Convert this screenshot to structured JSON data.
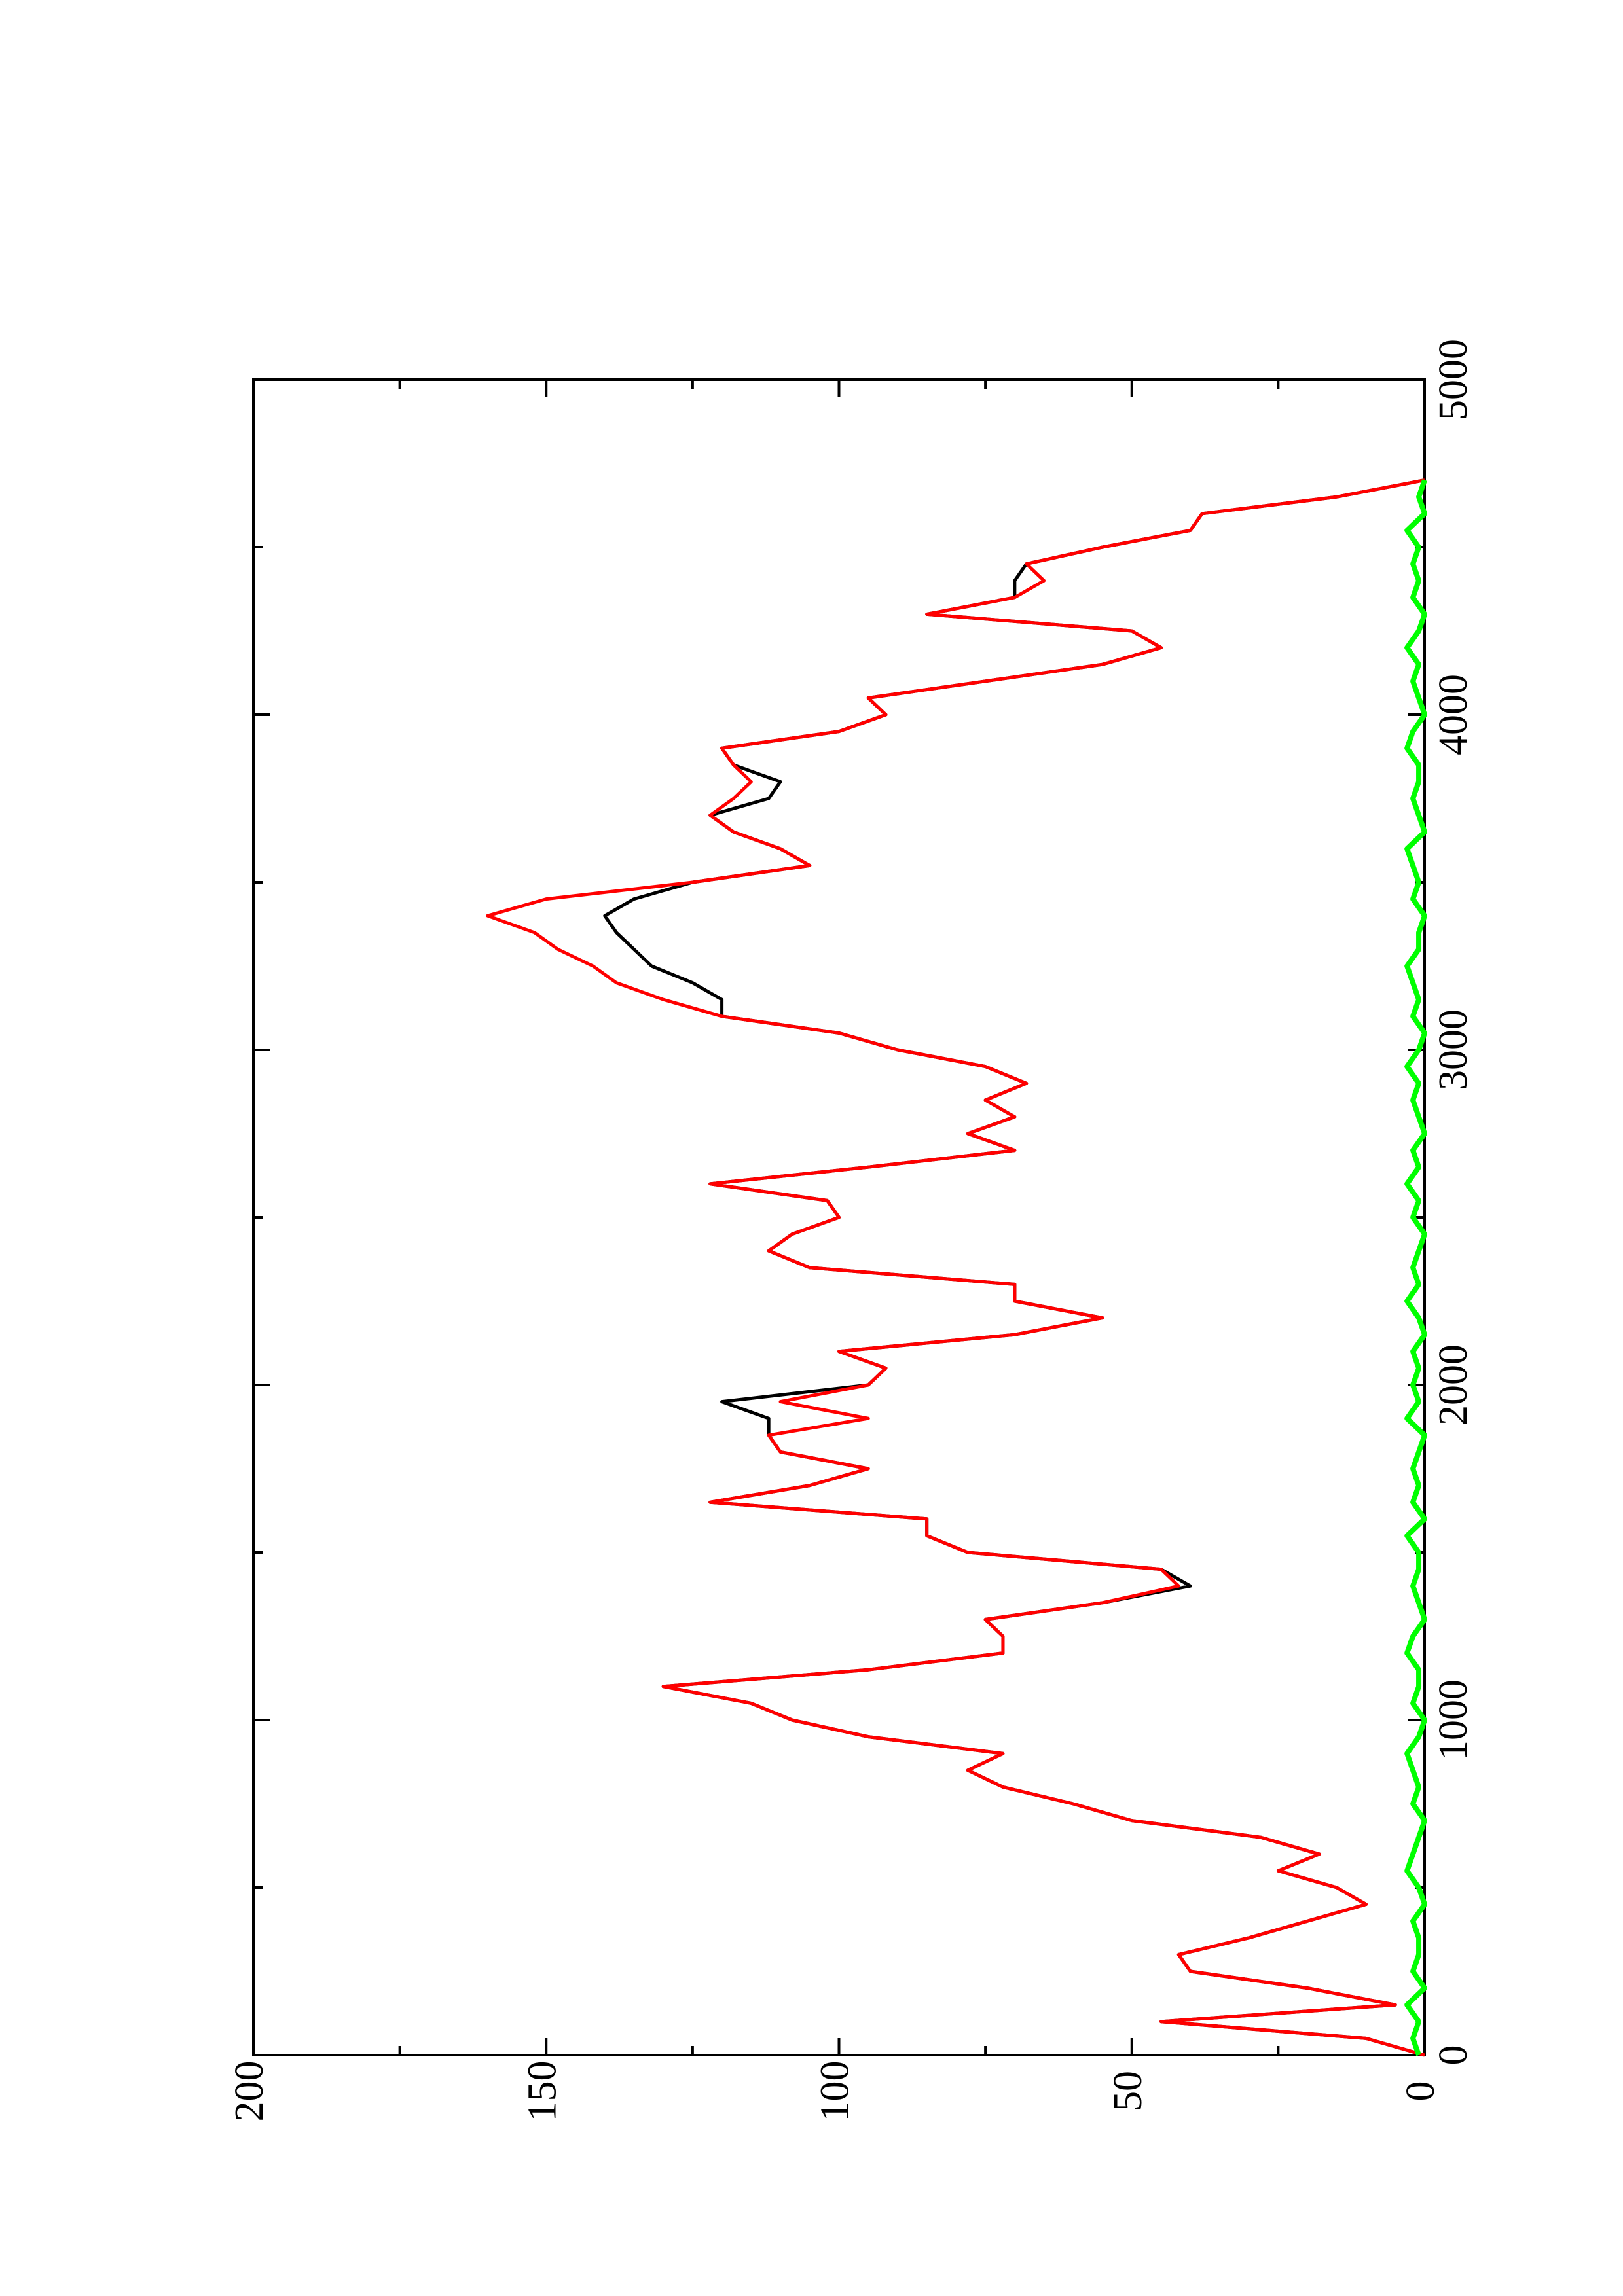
{
  "chart_data": {
    "type": "line",
    "x": [
      0,
      50,
      100,
      150,
      200,
      250,
      300,
      350,
      400,
      450,
      500,
      550,
      600,
      650,
      700,
      750,
      800,
      850,
      900,
      950,
      1000,
      1050,
      1100,
      1150,
      1200,
      1250,
      1300,
      1350,
      1400,
      1450,
      1500,
      1550,
      1600,
      1650,
      1700,
      1750,
      1800,
      1850,
      1900,
      1950,
      2000,
      2050,
      2100,
      2150,
      2200,
      2250,
      2300,
      2350,
      2400,
      2450,
      2500,
      2550,
      2600,
      2650,
      2700,
      2750,
      2800,
      2850,
      2900,
      2950,
      3000,
      3050,
      3100,
      3150,
      3200,
      3250,
      3300,
      3350,
      3400,
      3450,
      3500,
      3550,
      3600,
      3650,
      3700,
      3750,
      3800,
      3850,
      3900,
      3950,
      4000,
      4050,
      4100,
      4150,
      4200,
      4250,
      4300,
      4350,
      4400,
      4450,
      4500,
      4550,
      4600,
      4650,
      4700
    ],
    "series": [
      {
        "name": "black",
        "color": "#000000",
        "values": [
          0,
          10,
          45,
          5,
          20,
          40,
          42,
          30,
          20,
          10,
          15,
          25,
          18,
          28,
          50,
          60,
          72,
          78,
          72,
          95,
          108,
          115,
          130,
          95,
          72,
          72,
          75,
          55,
          40,
          45,
          78,
          85,
          85,
          122,
          105,
          95,
          110,
          112,
          112,
          120,
          95,
          92,
          100,
          70,
          55,
          70,
          70,
          105,
          112,
          108,
          100,
          102,
          122,
          95,
          70,
          78,
          70,
          75,
          68,
          75,
          90,
          100,
          120,
          120,
          125,
          132,
          135,
          138,
          140,
          135,
          125,
          105,
          110,
          118,
          122,
          112,
          110,
          118,
          120,
          100,
          92,
          95,
          75,
          55,
          45,
          50,
          85,
          70,
          70,
          68,
          55,
          40,
          38,
          15,
          0
        ]
      },
      {
        "name": "red",
        "color": "#ff0000",
        "values": [
          0,
          10,
          45,
          5,
          20,
          40,
          42,
          30,
          20,
          10,
          15,
          25,
          18,
          28,
          50,
          60,
          72,
          78,
          72,
          95,
          108,
          115,
          130,
          95,
          72,
          72,
          75,
          55,
          42,
          45,
          78,
          85,
          85,
          122,
          105,
          95,
          110,
          112,
          95,
          110,
          95,
          92,
          100,
          70,
          55,
          70,
          70,
          105,
          112,
          108,
          100,
          102,
          122,
          95,
          70,
          78,
          70,
          75,
          68,
          75,
          90,
          100,
          120,
          130,
          138,
          142,
          148,
          152,
          160,
          150,
          125,
          105,
          110,
          118,
          122,
          118,
          115,
          118,
          120,
          100,
          92,
          95,
          75,
          55,
          45,
          50,
          85,
          70,
          65,
          68,
          55,
          40,
          38,
          15,
          0
        ]
      },
      {
        "name": "green",
        "color": "#00ff00",
        "values": [
          1,
          2,
          1,
          3,
          0,
          2,
          1,
          1,
          2,
          0,
          1,
          3,
          2,
          1,
          0,
          2,
          1,
          2,
          3,
          1,
          0,
          2,
          1,
          1,
          3,
          2,
          0,
          1,
          2,
          1,
          1,
          3,
          0,
          2,
          1,
          2,
          1,
          0,
          3,
          1,
          2,
          1,
          2,
          0,
          1,
          3,
          1,
          2,
          1,
          0,
          2,
          1,
          3,
          1,
          2,
          0,
          1,
          2,
          1,
          3,
          1,
          0,
          2,
          1,
          2,
          3,
          1,
          1,
          0,
          2,
          1,
          2,
          3,
          0,
          1,
          2,
          1,
          1,
          3,
          2,
          0,
          1,
          2,
          1,
          3,
          1,
          0,
          2,
          1,
          2,
          1,
          3,
          0,
          1,
          0
        ]
      }
    ],
    "xlim": [
      0,
      5000
    ],
    "xticks": [
      0,
      1000,
      2000,
      3000,
      4000,
      5000
    ],
    "xminorticks": [
      500,
      1500,
      2500,
      3500,
      4500
    ],
    "ylim": [
      0,
      200
    ],
    "yticks": [
      0,
      50,
      100,
      150,
      200
    ],
    "yminorticks": [
      25,
      75,
      125,
      175
    ]
  }
}
